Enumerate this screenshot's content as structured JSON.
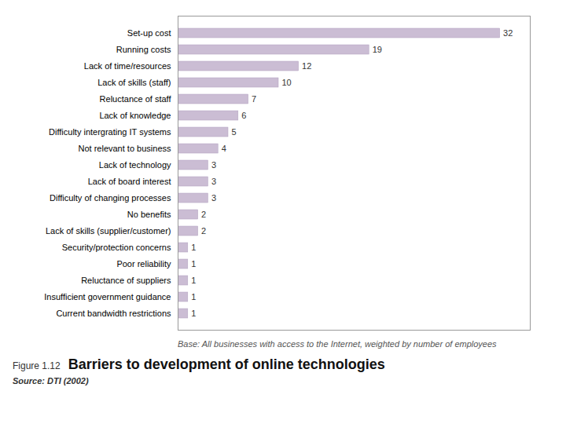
{
  "chart_data": {
    "type": "bar",
    "orientation": "horizontal",
    "title": "Barriers to development of online technologies",
    "annotations": [
      "Figure 1.12",
      "Base: All businesses with access to the Internet, weighted by number of employees",
      "Source: DTI (2002)"
    ],
    "categories": [
      "Current bandwidth restrictions",
      "Insufficient government guidance",
      "Reluctance of suppliers",
      "Poor reliability",
      "Security/protection concerns",
      "Lack of skills (supplier/customer)",
      "No benefits",
      "Difficulty of changing processes",
      "Lack of board interest",
      "Lack of technology",
      "Not relevant to business",
      "Difficulty intergrating IT systems",
      "Lack of knowledge",
      "Reluctance of staff",
      "Lack of skills (staff)",
      "Lack of time/resources",
      "Running costs",
      "Set-up cost"
    ],
    "values": [
      1,
      1,
      1,
      1,
      1,
      2,
      2,
      3,
      3,
      3,
      4,
      5,
      6,
      7,
      10,
      12,
      19,
      32
    ],
    "color": "#cbbdd4",
    "xlim": [
      0,
      35
    ],
    "xticks": [],
    "tick_labels": "y",
    "data_labels": true,
    "grid": false
  }
}
